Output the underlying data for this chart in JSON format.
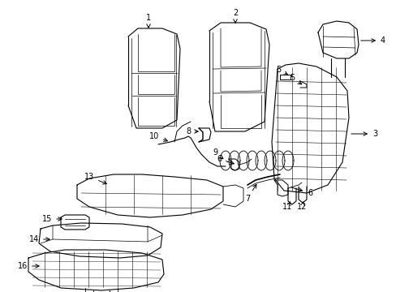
{
  "background_color": "#ffffff",
  "line_color": "#000000",
  "figsize": [
    4.89,
    3.6
  ],
  "dpi": 100
}
